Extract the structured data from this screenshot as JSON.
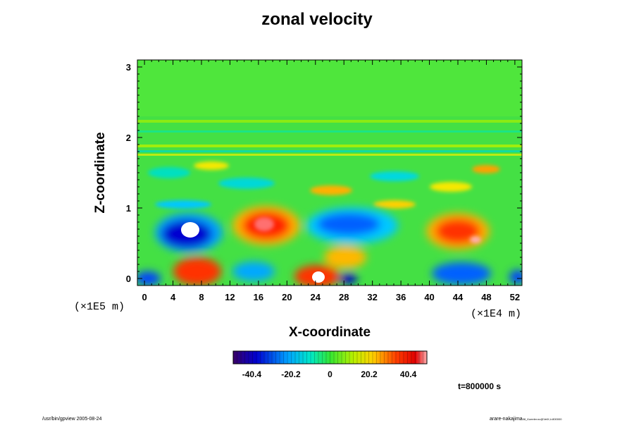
{
  "chart_data": {
    "type": "heatmap",
    "title": "zonal velocity",
    "xlabel": "X-coordinate",
    "ylabel": "Z-coordinate",
    "x_ticks": [
      "0",
      "4",
      "8",
      "12",
      "16",
      "20",
      "24",
      "28",
      "32",
      "36",
      "40",
      "44",
      "48",
      "52"
    ],
    "y_ticks": [
      "0",
      "1",
      "2",
      "3"
    ],
    "xlim": [
      -1,
      53
    ],
    "ylim": [
      -0.1,
      3.1
    ],
    "x_scale_note": "(×1E4 m)",
    "y_scale_note": "(×1E5 m)",
    "colorbar": {
      "range": [
        -50,
        50
      ],
      "tick_labels": [
        "-40.4",
        "-20.2",
        "0",
        "20.2",
        "40.4"
      ],
      "tick_values": [
        -40.4,
        -20.2,
        0,
        20.2,
        40.4
      ]
    },
    "time_label": "t=800000 s",
    "features": [
      {
        "x": 7,
        "z": 0.6,
        "value": -45
      },
      {
        "x": 16,
        "z": 0.75,
        "value": 38
      },
      {
        "x": 29,
        "z": 0.7,
        "value": -25
      },
      {
        "x": 43,
        "z": 0.65,
        "value": 35
      },
      {
        "x": 7,
        "z": 0.1,
        "value": 30
      },
      {
        "x": 24,
        "z": 0.05,
        "value": 42
      },
      {
        "x": 43,
        "z": 0.1,
        "value": -28
      },
      {
        "x": 33,
        "z": 0.3,
        "value": 20
      }
    ]
  },
  "footer": {
    "left": "/usr/bin/gpview 2005-08-24",
    "right": "arare-nakajima",
    "right_small": "08_Koeeler.nc@VelX,t=800000"
  }
}
